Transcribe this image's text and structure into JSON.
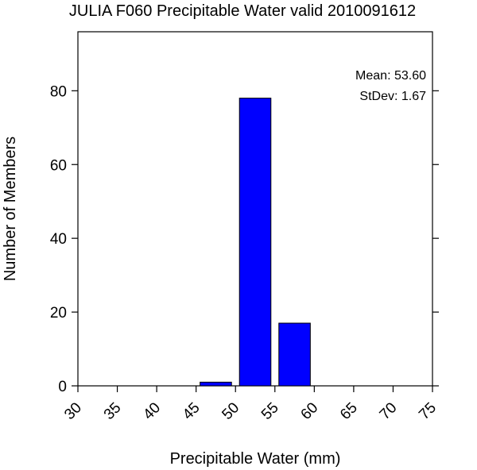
{
  "chart_data": {
    "type": "bar",
    "title": "JULIA F060 Precipitable Water valid 2010091612",
    "xlabel": "Precipitable Water (mm)",
    "ylabel": "Number of Members",
    "xlim": [
      30,
      75
    ],
    "ylim": [
      0,
      96
    ],
    "xticks": [
      30,
      35,
      40,
      45,
      50,
      55,
      60,
      65,
      70,
      75
    ],
    "yticks": [
      0,
      20,
      40,
      60,
      80
    ],
    "bin_width": 5,
    "bars": [
      {
        "bin": [
          45,
          50
        ],
        "value": 1
      },
      {
        "bin": [
          50,
          55
        ],
        "value": 78
      },
      {
        "bin": [
          55,
          60
        ],
        "value": 17
      }
    ],
    "bar_color": "#0000ff",
    "annotations": {
      "mean": "Mean: 53.60",
      "stdev": "StDev: 1.67"
    },
    "grid": false
  }
}
